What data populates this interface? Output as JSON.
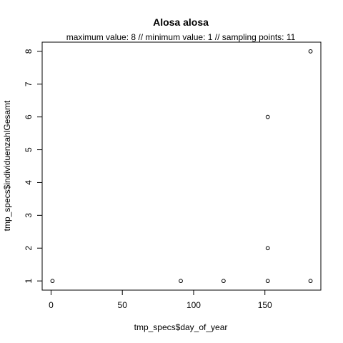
{
  "chart_data": {
    "type": "scatter",
    "title": "Alosa alosa",
    "subtitle": "maximum value: 8  //  minimum value: 1  // sampling points: 11",
    "xlabel": "tmp_specs$day_of_year",
    "ylabel": "tmp_specs$individuenzahlGesamt",
    "xlim": [
      -6.24,
      189.24
    ],
    "ylim": [
      0.72,
      8.28
    ],
    "xticks": [
      0,
      50,
      100,
      150
    ],
    "yticks": [
      1,
      2,
      3,
      4,
      5,
      6,
      7,
      8
    ],
    "grid": false,
    "marker": "open-circle",
    "points": [
      {
        "x": 1,
        "y": 1
      },
      {
        "x": 91,
        "y": 1
      },
      {
        "x": 121,
        "y": 1
      },
      {
        "x": 152,
        "y": 1
      },
      {
        "x": 152,
        "y": 2
      },
      {
        "x": 152,
        "y": 6
      },
      {
        "x": 182,
        "y": 1
      },
      {
        "x": 182,
        "y": 8
      }
    ]
  }
}
